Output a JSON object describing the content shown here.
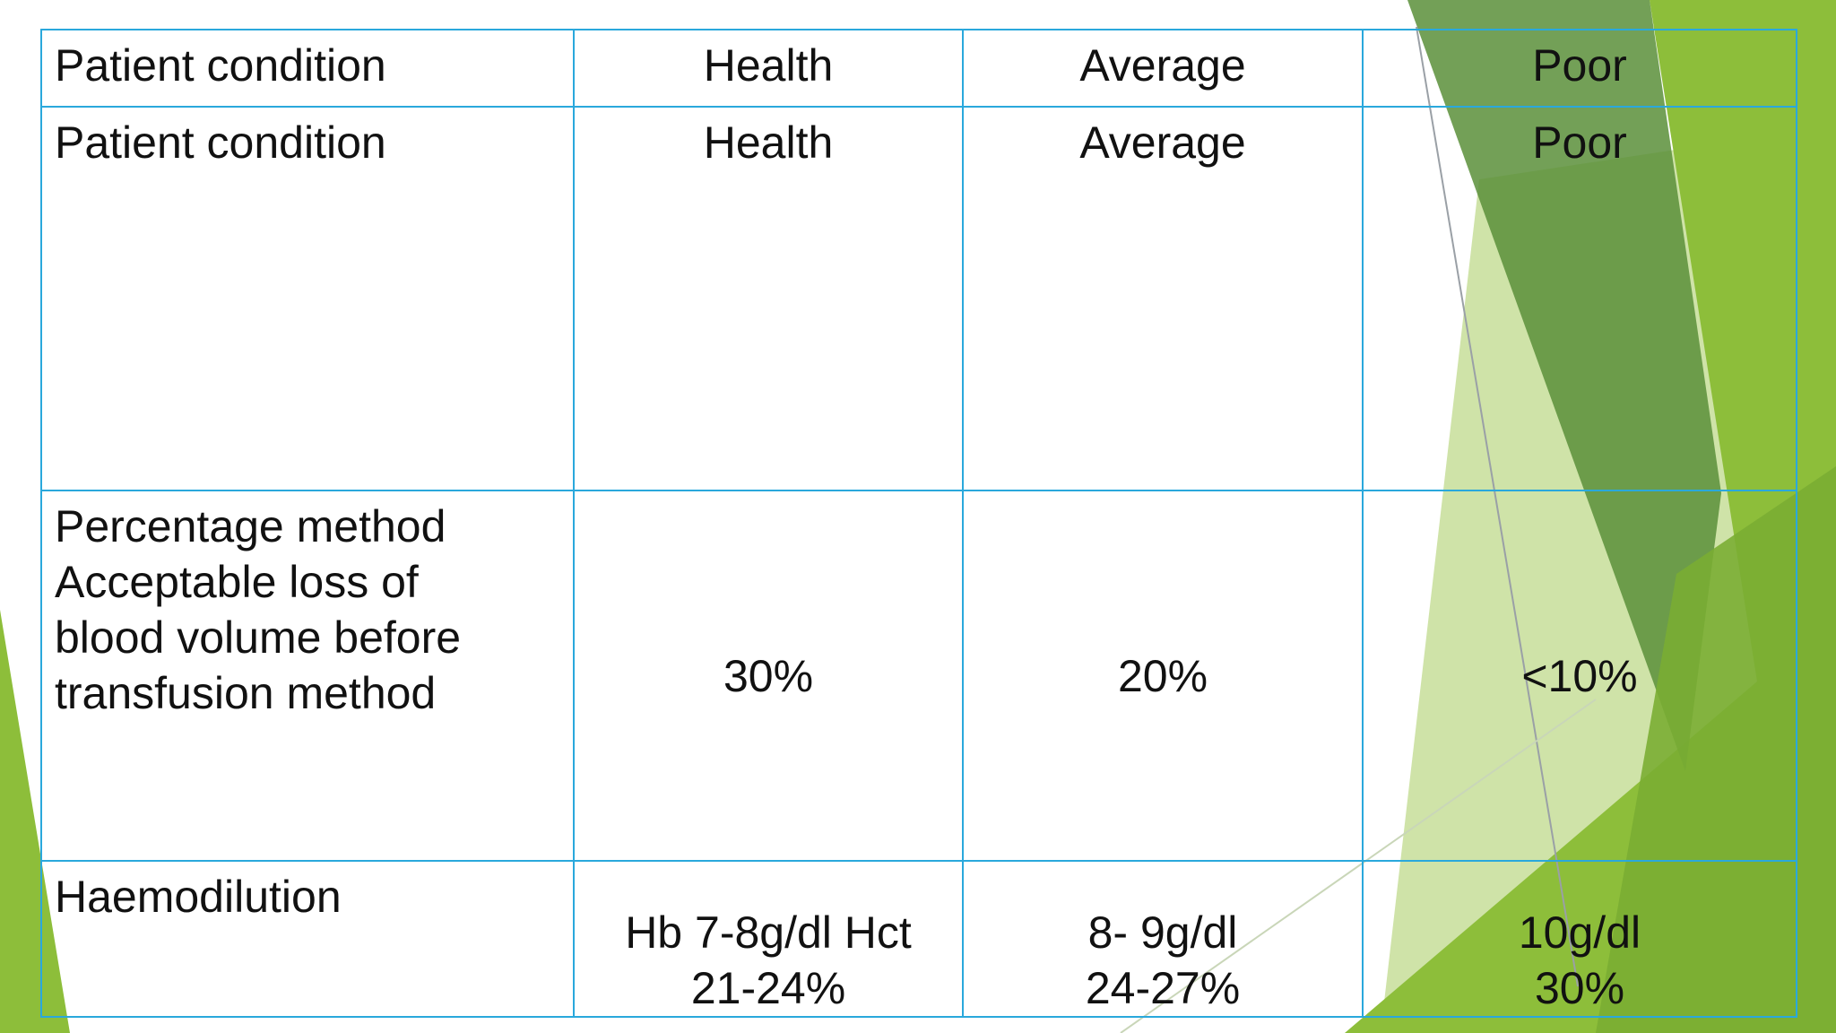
{
  "table": {
    "header": [
      "Patient condition",
      "Health",
      "Average",
      "Poor"
    ],
    "rows": [
      [
        "Patient condition",
        "Health",
        "Average",
        "Poor"
      ],
      [
        "Percentage  method\nAcceptable loss of\nblood volume  before\ntransfusion  method",
        "30%",
        "20%",
        "<10%"
      ],
      [
        "Haemodilution",
        "Hb 7-8g/dl  Hct\n21-24%",
        "8- 9g/dl\n24-27%",
        "10g/dl\n30%"
      ]
    ]
  },
  "theme": {
    "border": "#2aa8dc",
    "green_dark": "#5a8f3a",
    "green": "#8dbe3a",
    "green_light": "#cfe3a8"
  }
}
